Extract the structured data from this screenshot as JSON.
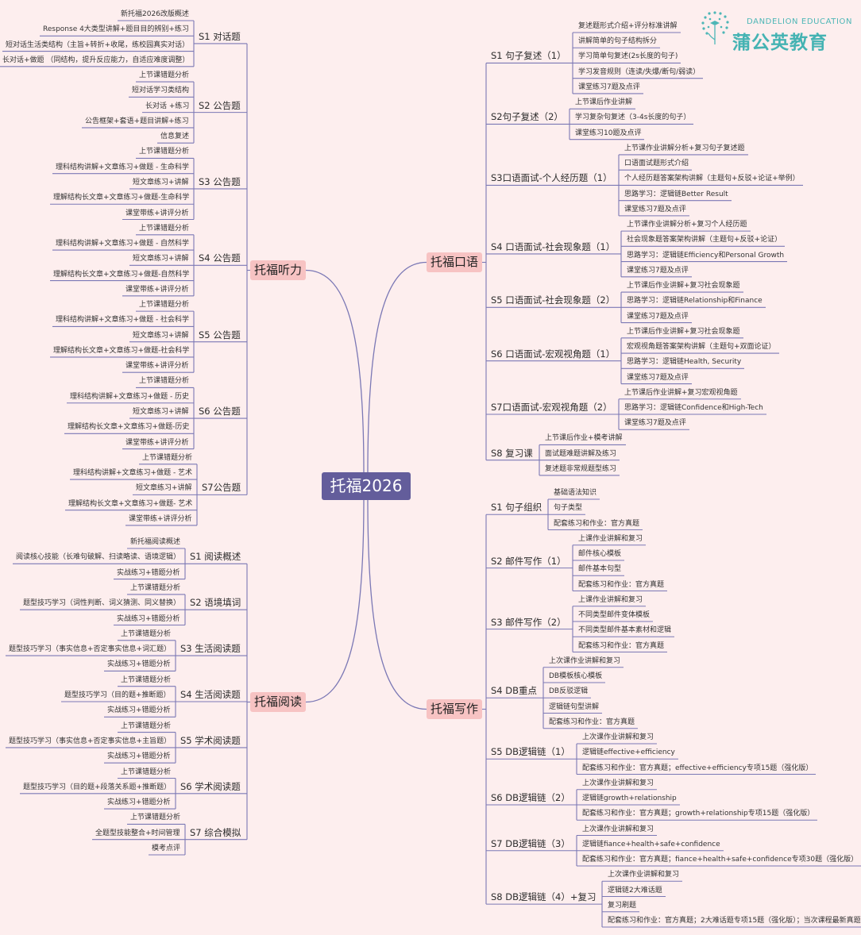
{
  "root": "托福2026",
  "logo": {
    "en": "DANDELION EDUCATION",
    "cn": "蒲公英教育"
  },
  "colors": {
    "background": "#fdeeee",
    "root": "#635d9b",
    "branch": "#f7c3c3",
    "line": "#7b78b5",
    "logo": "#45b3b3"
  },
  "branches": [
    {
      "label": "托福听力",
      "sections": [
        {
          "label": "S1 对话题",
          "items": [
            "新托福2026改版概述",
            "Response 4大类型讲解+题目目的辨别+练习",
            "短对话生活类结构（主旨+转折+收尾，练校园真实对话）",
            "长对话+做题 （同结构，提升反应能力，自适应难度调整）"
          ]
        },
        {
          "label": "S2 公告题",
          "items": [
            "上节课错题分析",
            "短对话学习类结构",
            "长对话 +练习",
            "公告框架+套语+题目讲解+练习",
            "信息复述"
          ]
        },
        {
          "label": "S3 公告题",
          "items": [
            "上节课错题分析",
            "理科结构讲解+文章练习+做题 - 生命科学",
            "短文章练习+讲解",
            "理解结构长文章+文章练习+做题-生命科学",
            "课堂带练+讲评分析"
          ]
        },
        {
          "label": "S4 公告题",
          "items": [
            "上节课错题分析",
            "理科结构讲解+文章练习+做题 - 自然科学",
            "短文章练习+讲解",
            "理解结构长文章+文章练习+做题-自然科学",
            "课堂带练+讲评分析"
          ]
        },
        {
          "label": "S5 公告题",
          "items": [
            "上节课错题分析",
            "理科结构讲解+文章练习+做题 - 社会科学",
            "短文章练习+讲解",
            "理解结构长文章+文章练习+做题-社会科学",
            "课堂带练+讲评分析"
          ]
        },
        {
          "label": "S6 公告题",
          "items": [
            "上节课错题分析",
            "理科结构讲解+文章练习+做题 - 历史",
            "短文章练习+讲解",
            "理解结构长文章+文章练习+做题-历史",
            "课堂带练+讲评分析"
          ]
        },
        {
          "label": "S7公告题",
          "items": [
            "上节课错题分析",
            "理科结构讲解+文章练习+做题 - 艺术",
            "短文章练习+讲解",
            "理解结构长文章+文章练习+做题- 艺术",
            "课堂带练+讲评分析"
          ]
        }
      ]
    },
    {
      "label": "托福口语",
      "sections": [
        {
          "label": "S1 句子复述（1）",
          "items": [
            "复述题形式介绍+评分标准讲解",
            "讲解简单的句子结构拆分",
            "学习简单句复述(2s长度的句子)",
            "学习发音规则（连读/失爆/断句/弱读）",
            "课堂练习7题及点评"
          ]
        },
        {
          "label": "S2句子复述（2）",
          "items": [
            "上节课后作业讲解",
            "学习复杂句复述（3-4s长度的句子）",
            "课堂练习10题及点评"
          ]
        },
        {
          "label": "S3口语面试-个人经历题（1）",
          "items": [
            "上节课作业讲解分析+复习句子复述题",
            "口语面试题形式介绍",
            "个人经历题答案架构讲解（主题句+反驳+论证+举例）",
            "思路学习：逻辑链Better Result",
            "课堂练习7题及点评"
          ]
        },
        {
          "label": "S4 口语面试-社会现象题（1）",
          "items": [
            "上节课作业讲解分析+复习个人经历题",
            "社会现象题答案架构讲解（主题句+反驳+论证）",
            "思路学习：逻辑链Efficiency和Personal Growth",
            "课堂练习7题及点评"
          ]
        },
        {
          "label": "S5 口语面试-社会现象题（2）",
          "items": [
            "上节课后作业讲解+复习社会现象题",
            "思路学习：逻辑链Relationship和Finance",
            "课堂练习7题及点评"
          ]
        },
        {
          "label": "S6 口语面试-宏观视角题（1）",
          "items": [
            "上节课后作业讲解+复习社会现象题",
            "宏观视角题答案架构讲解（主题句+双面论证）",
            "思路学习：逻辑链Health, Security",
            "课堂练习7题及点评"
          ]
        },
        {
          "label": "S7口语面试-宏观视角题（2）",
          "items": [
            "上节课后作业讲解+复习宏观视角题",
            "思路学习：逻辑链Confidence和High-Tech",
            "课堂练习7题及点评"
          ]
        },
        {
          "label": "S8 复习课",
          "items": [
            "上节课后作业+模考讲解",
            "面试题难题讲解及练习",
            "复述题非常规题型练习"
          ]
        }
      ]
    },
    {
      "label": "托福阅读",
      "sections": [
        {
          "label": "S1 阅读概述",
          "items": [
            "新托福阅读概述",
            "阅读核心技能（长难句破解、扫读略读、语境逻辑）",
            "实战练习+错题分析"
          ]
        },
        {
          "label": "S2 语境填词",
          "items": [
            "上节课错题分析",
            "题型技巧学习（词性判断、词义猜测、同义替换）",
            "实战练习+错题分析"
          ]
        },
        {
          "label": "S3 生活阅读题",
          "items": [
            "上节课错题分析",
            "题型技巧学习（事实信息+否定事实信息+词汇题）",
            "实战练习+错题分析"
          ]
        },
        {
          "label": "S4 生活阅读题",
          "items": [
            "上节课错题分析",
            "题型技巧学习（目的题+推断题）",
            "实战练习+错题分析"
          ]
        },
        {
          "label": "S5 学术阅读题",
          "items": [
            "上节课错题分析",
            "题型技巧学习（事实信息+否定事实信息+主旨题）",
            "实战练习+错题分析"
          ]
        },
        {
          "label": "S6 学术阅读题",
          "items": [
            "上节课错题分析",
            "题型技巧学习（目的题+段落关系题+推断题）",
            "实战练习+错题分析"
          ]
        },
        {
          "label": "S7 综合模拟",
          "items": [
            "上节课错题分析",
            "全题型技能整合+时间管理",
            "模考点评"
          ]
        }
      ]
    },
    {
      "label": "托福写作",
      "sections": [
        {
          "label": "S1 句子组织",
          "items": [
            "基础语法知识",
            "句子类型",
            "配套练习和作业：官方真题"
          ]
        },
        {
          "label": "S2 邮件写作（1）",
          "items": [
            "上课作业讲解和复习",
            "邮件核心模板",
            "邮件基本句型",
            "配套练习和作业：官方真题"
          ]
        },
        {
          "label": "S3 邮件写作（2）",
          "items": [
            "上课作业讲解和复习",
            "不同类型邮件变体模板",
            "不同类型邮件基本素材和逻辑",
            "配套练习和作业：官方真题"
          ]
        },
        {
          "label": "S4 DB重点",
          "items": [
            "上次课作业讲解和复习",
            "DB模板核心模板",
            "DB反驳逻辑",
            "逻辑链句型讲解",
            "配套练习和作业：官方真题"
          ]
        },
        {
          "label": "S5 DB逻辑链（1）",
          "items": [
            "上次课作业讲解和复习",
            "逻辑链effective+efficiency",
            "配套练习和作业：官方真题；effective+efficiency专项15题（强化版）"
          ]
        },
        {
          "label": "S6 DB逻辑链（2）",
          "items": [
            "上次课作业讲解和复习",
            "逻辑链growth+relationship",
            "配套练习和作业：官方真题；growth+relationship专项15题（强化版）"
          ]
        },
        {
          "label": "S7 DB逻辑链（3）",
          "items": [
            "上次课作业讲解和复习",
            "逻辑链fiance+health+safe+confidence",
            "配套练习和作业：官方真题；fiance+health+safe+confidence专项30题（强化版）"
          ]
        },
        {
          "label": "S8 DB逻辑链（4）+复习",
          "items": [
            "上次课作业讲解和复习",
            "逻辑链2大难话题",
            "复习刷题",
            "配套练习和作业：官方真题；2大难话题专项15题（强化版）；当次课程最新真题"
          ]
        }
      ]
    }
  ]
}
